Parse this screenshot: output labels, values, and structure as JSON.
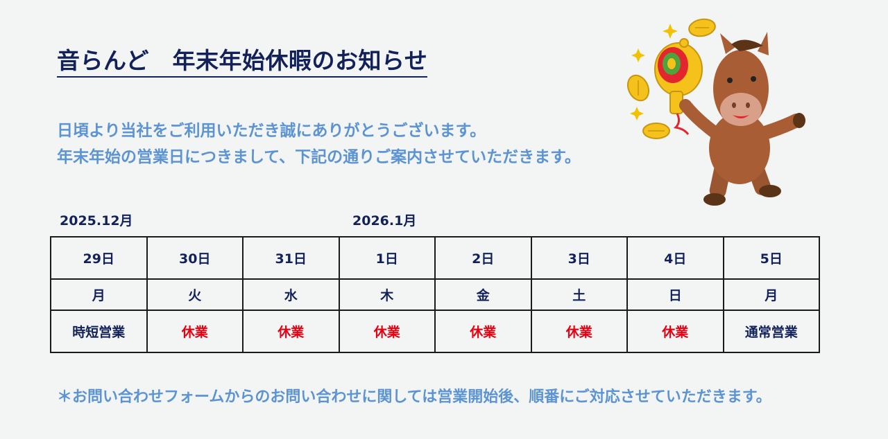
{
  "header": {
    "title": "音らんど　年末年始休暇のお知らせ"
  },
  "intro": {
    "line1": "日頃より当社をご利用いただき誠にありがとうございます。",
    "line2": "年末年始の営業日につきまして、下記の通りご案内させていただきます。"
  },
  "months": {
    "first": "2025.12月",
    "second": "2026.1月"
  },
  "schedule": {
    "days": [
      {
        "date": "29日",
        "weekday": "月",
        "status": "時短営業",
        "closed": false
      },
      {
        "date": "30日",
        "weekday": "火",
        "status": "休業",
        "closed": true
      },
      {
        "date": "31日",
        "weekday": "水",
        "status": "休業",
        "closed": true
      },
      {
        "date": "1日",
        "weekday": "木",
        "status": "休業",
        "closed": true
      },
      {
        "date": "2日",
        "weekday": "金",
        "status": "休業",
        "closed": true
      },
      {
        "date": "3日",
        "weekday": "土",
        "status": "休業",
        "closed": true
      },
      {
        "date": "4日",
        "weekday": "日",
        "status": "休業",
        "closed": true
      },
      {
        "date": "5日",
        "weekday": "月",
        "status": "通常営業",
        "closed": false
      }
    ]
  },
  "note": {
    "text": "＊お問い合わせフォームからのお問い合わせに関しては営業開始後、順番にご対応させていただきます。"
  },
  "illustration": {
    "icon": "horse-with-lucky-mallet-icon"
  },
  "colors": {
    "background": "#f3f5f5",
    "navy": "#13215a",
    "accent_blue": "#5b93d3",
    "closed_red": "#e60012"
  }
}
